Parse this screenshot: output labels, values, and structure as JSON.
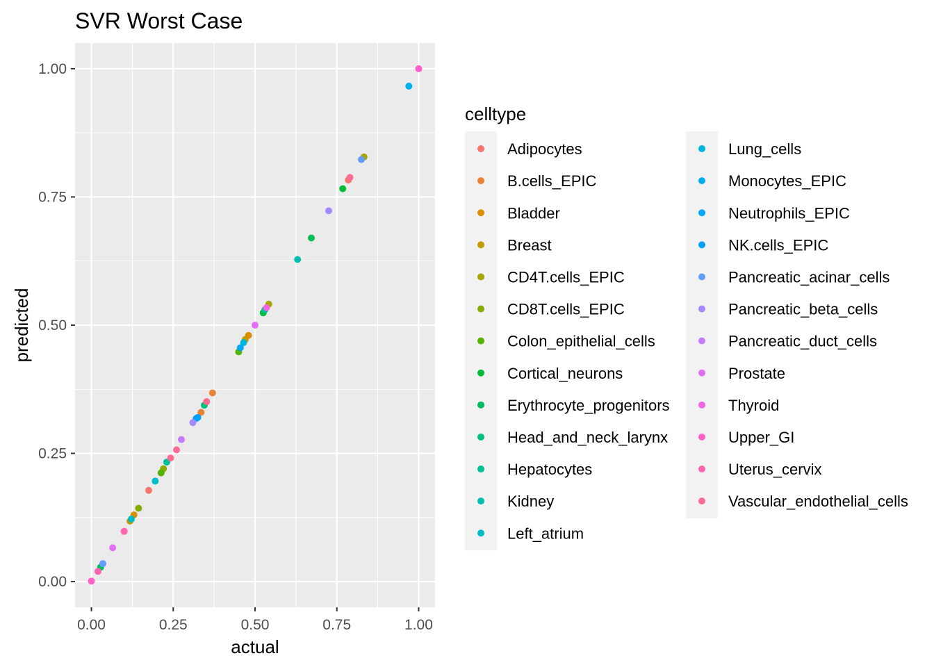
{
  "chart_data": {
    "type": "scatter",
    "title": "SVR Worst Case",
    "xlabel": "actual",
    "ylabel": "predicted",
    "xlim": [
      -0.05,
      1.05
    ],
    "ylim": [
      -0.05,
      1.05
    ],
    "x_ticks": [
      0,
      0.25,
      0.5,
      0.75,
      1.0
    ],
    "x_tick_labels": [
      "0.00",
      "0.25",
      "0.50",
      "0.75",
      "1.00"
    ],
    "y_ticks": [
      0,
      0.25,
      0.5,
      0.75,
      1.0
    ],
    "y_tick_labels": [
      "0.00",
      "0.25",
      "0.50",
      "0.75",
      "1.00"
    ],
    "grid": true,
    "background": "#ebebeb",
    "legend_title": "celltype",
    "legend_position": "right",
    "series": [
      {
        "name": "Adipocytes",
        "color": "#F8766D",
        "points": [
          [
            0.175,
            0.178
          ],
          [
            0.785,
            0.783
          ]
        ]
      },
      {
        "name": "B.cells_EPIC",
        "color": "#EB8335",
        "points": [
          [
            0.37,
            0.368
          ],
          [
            0.335,
            0.33
          ]
        ]
      },
      {
        "name": "Bladder",
        "color": "#DA8F00",
        "points": [
          [
            0.48,
            0.48
          ],
          [
            0.13,
            0.13
          ]
        ]
      },
      {
        "name": "Breast",
        "color": "#C49A00",
        "points": [
          [
            0.47,
            0.472
          ],
          [
            0.118,
            0.118
          ]
        ]
      },
      {
        "name": "CD4T.cells_EPIC",
        "color": "#A9A400",
        "points": [
          [
            0.542,
            0.541
          ],
          [
            0.833,
            0.828
          ]
        ]
      },
      {
        "name": "CD8T.cells_EPIC",
        "color": "#86AC00",
        "points": [
          [
            0.144,
            0.143
          ],
          [
            0.22,
            0.22
          ]
        ]
      },
      {
        "name": "Colon_epithelial_cells",
        "color": "#53B400",
        "points": [
          [
            0.213,
            0.212
          ],
          [
            0.45,
            0.448
          ]
        ]
      },
      {
        "name": "Cortical_neurons",
        "color": "#00BA38",
        "points": [
          [
            0.525,
            0.524
          ],
          [
            0.768,
            0.766
          ]
        ]
      },
      {
        "name": "Erythrocyte_progenitors",
        "color": "#00BD5C",
        "points": [
          [
            0.672,
            0.67
          ],
          [
            0.028,
            0.028
          ]
        ]
      },
      {
        "name": "Head_and_neck_larynx",
        "color": "#00C07B",
        "points": [
          [
            0.345,
            0.344
          ]
        ]
      },
      {
        "name": "Hepatocytes",
        "color": "#00C097",
        "points": [
          [
            0.53,
            0.53
          ],
          [
            0.23,
            0.233
          ]
        ]
      },
      {
        "name": "Kidney",
        "color": "#00BFB0",
        "points": [
          [
            0.63,
            0.628
          ]
        ]
      },
      {
        "name": "Left_atrium",
        "color": "#00BCC8",
        "points": [
          [
            0.195,
            0.196
          ],
          [
            0.122,
            0.122
          ]
        ]
      },
      {
        "name": "Lung_cells",
        "color": "#00B7DB",
        "points": [
          [
            0.465,
            0.466
          ]
        ]
      },
      {
        "name": "Monocytes_EPIC",
        "color": "#00B0EC",
        "points": [
          [
            0.97,
            0.966
          ]
        ]
      },
      {
        "name": "Neutrophils_EPIC",
        "color": "#00A7F8",
        "points": [
          [
            0.455,
            0.456
          ],
          [
            0.32,
            0.318
          ]
        ]
      },
      {
        "name": "NK.cells_EPIC",
        "color": "#00A0FF",
        "points": [
          [
            0.325,
            0.32
          ]
        ]
      },
      {
        "name": "Pancreatic_acinar_cells",
        "color": "#619CFF",
        "points": [
          [
            0.825,
            0.823
          ],
          [
            0.035,
            0.035
          ]
        ]
      },
      {
        "name": "Pancreatic_beta_cells",
        "color": "#A58AFF",
        "points": [
          [
            0.725,
            0.723
          ],
          [
            0.31,
            0.31
          ]
        ]
      },
      {
        "name": "Pancreatic_duct_cells",
        "color": "#C77CFF",
        "points": [
          [
            0.275,
            0.277
          ]
        ]
      },
      {
        "name": "Prostate",
        "color": "#E36EF6",
        "points": [
          [
            0.065,
            0.066
          ],
          [
            0.5,
            0.5
          ]
        ]
      },
      {
        "name": "Thyroid",
        "color": "#F564E3",
        "points": [
          [
            0.535,
            0.534
          ]
        ]
      },
      {
        "name": "Upper_GI",
        "color": "#FF61C9",
        "points": [
          [
            1.0,
            1.0
          ],
          [
            0.0,
            0.001
          ]
        ]
      },
      {
        "name": "Uterus_cervix",
        "color": "#FF64B0",
        "points": [
          [
            0.1,
            0.098
          ],
          [
            0.02,
            0.02
          ]
        ]
      },
      {
        "name": "Vascular_endothelial_cells",
        "color": "#FF6C92",
        "points": [
          [
            0.79,
            0.788
          ],
          [
            0.26,
            0.257
          ],
          [
            0.242,
            0.241
          ],
          [
            0.352,
            0.351
          ]
        ]
      }
    ]
  }
}
